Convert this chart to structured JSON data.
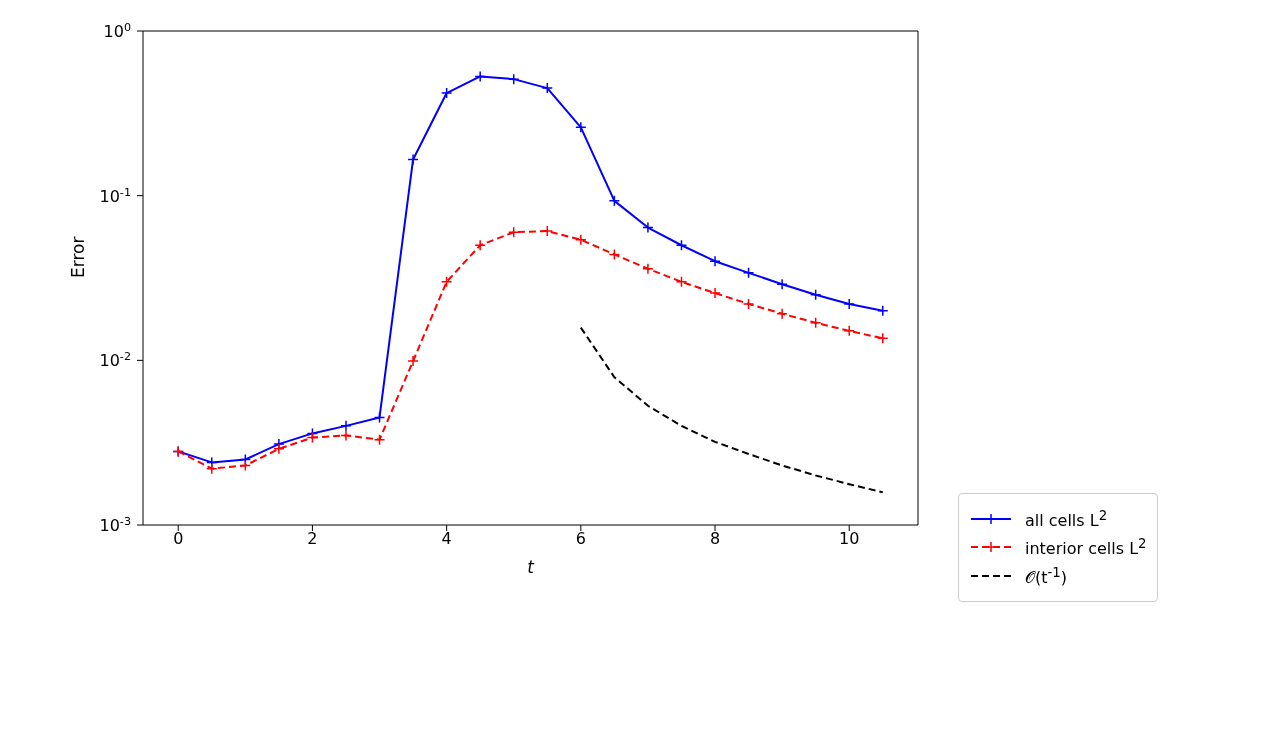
{
  "chart_data": {
    "type": "line",
    "xlabel": "t",
    "ylabel": "Error",
    "log": "y",
    "grid": false,
    "legend": "bottom right",
    "x": [
      0,
      0.5,
      1,
      1.5,
      2,
      2.5,
      3,
      3.5,
      4,
      4.5,
      5,
      5.5,
      6,
      6.5,
      7,
      7.5,
      8,
      8.5,
      9,
      9.5,
      10,
      10.5
    ],
    "xlim": [
      -0.525,
      11.025
    ],
    "xticks": [
      0,
      2,
      4,
      6,
      8,
      10
    ],
    "ylim": [
      0.001,
      1
    ],
    "yticks": [
      {
        "value": 0.001,
        "label": "10$^{-3}$"
      },
      {
        "value": 0.01,
        "label": "10$^{-2}$"
      },
      {
        "value": 0.1,
        "label": "10$^{-1}$"
      },
      {
        "value": 1,
        "label": "10$^{0}$"
      }
    ],
    "series": [
      {
        "name": "all cells L$^{2}$",
        "color": "#0000ff",
        "marker": "cross",
        "line_style": "solid",
        "values": [
          0.0028,
          0.0024,
          0.0025,
          0.0031,
          0.0036,
          0.004,
          0.0045,
          0.166,
          0.42,
          0.53,
          0.51,
          0.45,
          0.26,
          0.093,
          0.064,
          0.05,
          0.04,
          0.034,
          0.029,
          0.025,
          0.022,
          0.02
        ]
      },
      {
        "name": "interior cells L$^{2}$",
        "color": "#ff0000",
        "marker": "cross",
        "line_style": "dashed",
        "values": [
          0.0028,
          0.0022,
          0.0023,
          0.0029,
          0.0034,
          0.0035,
          0.0033,
          0.0099,
          0.03,
          0.05,
          0.06,
          0.061,
          0.054,
          0.044,
          0.036,
          0.03,
          0.0256,
          0.022,
          0.0192,
          0.0169,
          0.0151,
          0.0136
        ]
      },
      {
        "name": "𝒪(t$^{-1}$)",
        "color": "#000000",
        "marker": "none",
        "line_style": "dashed",
        "x": [
          6,
          6.5,
          7,
          7.5,
          8,
          8.5,
          9,
          9.5,
          10,
          10.5
        ],
        "values": [
          0.0158,
          0.0079,
          0.0053,
          0.004,
          0.0032,
          0.0027,
          0.0023,
          0.002,
          0.00177,
          0.00158
        ]
      }
    ]
  }
}
